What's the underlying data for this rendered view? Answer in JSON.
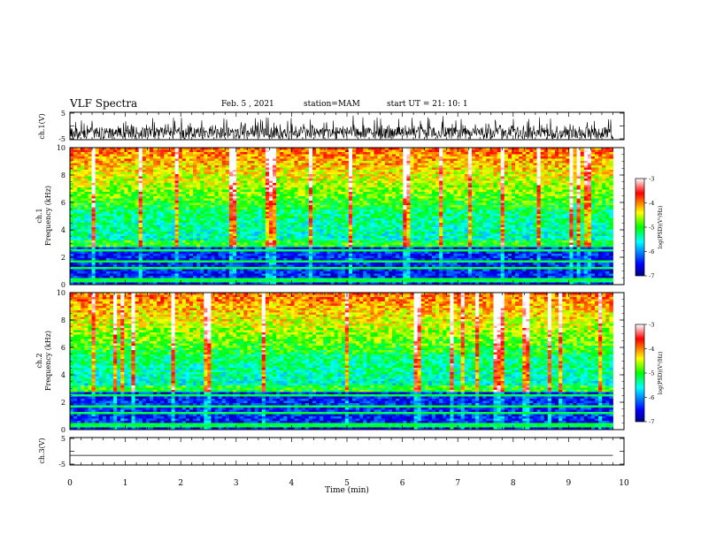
{
  "header": {
    "title": "VLF Spectra",
    "date": "Feb. 5 , 2021",
    "station": "station=MAM",
    "start_ut": "start UT =  21: 10: 1"
  },
  "chart_data": [
    {
      "type": "line",
      "panel": "ch1-waveform",
      "ylabel": "ch.1(V)",
      "ylim": [
        -5,
        5
      ],
      "yticks": [
        "5",
        "-5"
      ],
      "xlim": [
        0,
        10
      ],
      "description_values": {
        "amplitude_range_V": [
          -4,
          4
        ]
      },
      "color": "#000000"
    },
    {
      "type": "heatmap",
      "panel": "ch1-spectrogram",
      "ylabel_line1": "ch.1",
      "ylabel_line2": "Frequency (kHz)",
      "ylim": [
        0,
        10
      ],
      "yticks": [
        "0",
        "2",
        "4",
        "6",
        "8",
        "10"
      ],
      "xlim": [
        0,
        9.8
      ],
      "colorbar": {
        "label": "log(PSD)(V²/Hz)",
        "range": [
          -7,
          -3
        ],
        "ticks": [
          "-3",
          "-4",
          "-5",
          "-6",
          "-7"
        ]
      },
      "bands_kHz": {
        "low_intensity_top": 2.8,
        "mid_intensity_top": 5.5,
        "high_intensity_top": 10
      }
    },
    {
      "type": "heatmap",
      "panel": "ch2-spectrogram",
      "ylabel_line1": "ch.2",
      "ylabel_line2": "Frequency (kHz)",
      "ylim": [
        0,
        10
      ],
      "yticks": [
        "0",
        "2",
        "4",
        "6",
        "8",
        "10"
      ],
      "xlim": [
        0,
        9.8
      ],
      "colorbar": {
        "label": "log(PSD)(V²/Hz)",
        "range": [
          -7,
          -3
        ],
        "ticks": [
          "-3",
          "-4",
          "-5",
          "-6",
          "-7"
        ]
      },
      "bands_kHz": {
        "low_intensity_top": 2.8,
        "mid_intensity_top": 5.5,
        "high_intensity_top": 10
      }
    },
    {
      "type": "line",
      "panel": "ch3-waveform",
      "ylabel": "ch.3(V)",
      "ylim": [
        -5,
        5
      ],
      "yticks": [
        "5",
        "-5"
      ],
      "xlim": [
        0,
        10
      ],
      "values_const": -1.5,
      "color": "#000000"
    }
  ],
  "xaxis": {
    "label": "Time (min)",
    "ticks": [
      "0",
      "1",
      "2",
      "3",
      "4",
      "5",
      "6",
      "7",
      "8",
      "9",
      "10"
    ],
    "range": [
      0,
      10
    ]
  }
}
